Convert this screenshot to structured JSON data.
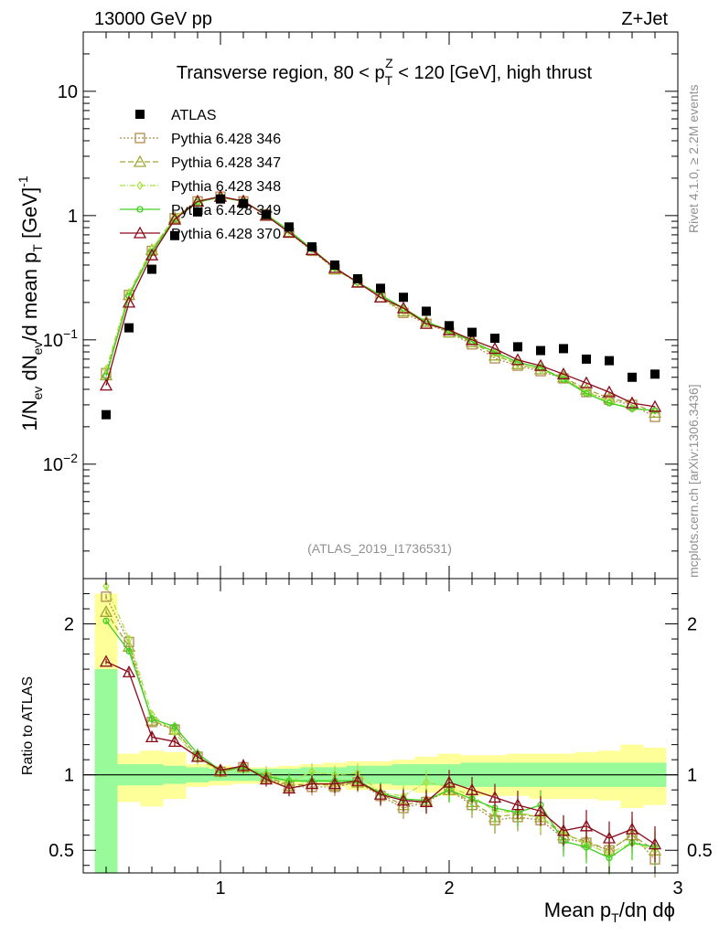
{
  "header": {
    "energy_label": "13000 GeV pp",
    "process_label": "Z+Jet"
  },
  "side_labels": {
    "rivet": "Rivet 4.1.0, ≥ 2.2M events",
    "mcplots": "mcplots.cern.ch [arXiv:1306.3436]"
  },
  "chart_data": [
    {
      "type": "scatter",
      "panel": "main",
      "title": "Transverse region, 80 < p_T^Z < 120 [GeV], high thrust",
      "analysis_tag": "(ATLAS_2019_I1736531)",
      "ylabel": "1/N_ev dN_ev/d mean p_T [GeV]^-1",
      "yscale": "log",
      "ylim": [
        0.0012,
        30
      ],
      "xlim": [
        0.4,
        3.0
      ],
      "y_ticks": [
        0.01,
        0.1,
        1,
        10
      ],
      "y_tick_labels": [
        "10^-2",
        "10^-1",
        "1",
        "10"
      ],
      "legend_position": "top-left",
      "legend": [
        "ATLAS",
        "Pythia 6.428 346",
        "Pythia 6.428 347",
        "Pythia 6.428 348",
        "Pythia 6.428 349",
        "Pythia 6.428 370"
      ],
      "x": [
        0.5,
        0.6,
        0.7,
        0.8,
        0.9,
        1.0,
        1.1,
        1.2,
        1.3,
        1.4,
        1.5,
        1.6,
        1.7,
        1.8,
        1.9,
        2.0,
        2.1,
        2.2,
        2.3,
        2.4,
        2.5,
        2.6,
        2.7,
        2.8,
        2.9
      ],
      "series": [
        {
          "name": "ATLAS",
          "color": "#000000",
          "marker": "square-filled",
          "values": [
            0.025,
            0.125,
            0.37,
            0.69,
            1.07,
            1.36,
            1.25,
            1.02,
            0.81,
            0.56,
            0.4,
            0.31,
            0.26,
            0.22,
            0.17,
            0.13,
            0.115,
            0.103,
            0.088,
            0.082,
            0.085,
            0.07,
            0.068,
            0.05,
            0.053
          ]
        },
        {
          "name": "Pythia 6.428 346",
          "color": "#b08c4c",
          "marker": "square-open",
          "dash": "2,2",
          "values": [
            0.054,
            0.23,
            0.52,
            0.95,
            1.3,
            1.42,
            1.3,
            1.02,
            0.73,
            0.52,
            0.37,
            0.29,
            0.22,
            0.165,
            0.135,
            0.115,
            0.092,
            0.071,
            0.062,
            0.056,
            0.049,
            0.038,
            0.033,
            0.03,
            0.024
          ]
        },
        {
          "name": "Pythia 6.428 347",
          "color": "#a0a830",
          "marker": "triangle-open",
          "dash": "6,3",
          "values": [
            0.052,
            0.23,
            0.53,
            0.96,
            1.31,
            1.42,
            1.3,
            1.01,
            0.74,
            0.53,
            0.37,
            0.29,
            0.22,
            0.17,
            0.14,
            0.115,
            0.096,
            0.075,
            0.064,
            0.058,
            0.05,
            0.04,
            0.034,
            0.031,
            0.026
          ]
        },
        {
          "name": "Pythia 6.428 348",
          "color": "#a8e040",
          "marker": "diamond-open",
          "dash": "6,2,1,2",
          "values": [
            0.058,
            0.24,
            0.54,
            0.97,
            1.31,
            1.41,
            1.3,
            1.02,
            0.75,
            0.54,
            0.38,
            0.29,
            0.23,
            0.17,
            0.14,
            0.12,
            0.097,
            0.078,
            0.064,
            0.058,
            0.049,
            0.038,
            0.032,
            0.028,
            0.027
          ]
        },
        {
          "name": "Pythia 6.428 349",
          "color": "#40d020",
          "marker": "circle-open",
          "dash": "",
          "values": [
            0.051,
            0.225,
            0.51,
            0.94,
            1.28,
            1.41,
            1.3,
            1.02,
            0.76,
            0.54,
            0.38,
            0.29,
            0.23,
            0.18,
            0.14,
            0.118,
            0.097,
            0.08,
            0.066,
            0.06,
            0.048,
            0.037,
            0.031,
            0.028,
            0.027
          ]
        },
        {
          "name": "Pythia 6.428 370",
          "color": "#8b0a1a",
          "marker": "triangle-open",
          "dash": "",
          "values": [
            0.043,
            0.2,
            0.48,
            0.93,
            1.3,
            1.42,
            1.31,
            1.0,
            0.73,
            0.53,
            0.38,
            0.29,
            0.22,
            0.18,
            0.135,
            0.12,
            0.1,
            0.085,
            0.069,
            0.062,
            0.053,
            0.045,
            0.038,
            0.031,
            0.029
          ]
        }
      ]
    },
    {
      "type": "line",
      "panel": "ratio",
      "ylabel": "Ratio to ATLAS",
      "xlabel": "Mean p_T/dη dϕ",
      "ylim": [
        0.35,
        2.3
      ],
      "xlim": [
        0.4,
        3.0
      ],
      "x_ticks": [
        1,
        2,
        3
      ],
      "x_tick_labels": [
        "1",
        "2",
        "3"
      ],
      "y_ticks": [
        0.5,
        1,
        2
      ],
      "y_tick_labels": [
        "0.5",
        "1",
        "2"
      ],
      "reference_line": 1,
      "bin_edges": [
        0.45,
        0.55,
        0.65,
        0.75,
        0.85,
        0.95,
        1.05,
        1.15,
        1.25,
        1.35,
        1.45,
        1.55,
        1.65,
        1.75,
        1.85,
        1.95,
        2.05,
        2.15,
        2.25,
        2.35,
        2.45,
        2.55,
        2.65,
        2.75,
        2.85,
        2.95
      ],
      "band_stat": {
        "color": "#98fa98",
        "lo": [
          0.35,
          0.93,
          0.93,
          0.94,
          0.95,
          0.96,
          0.96,
          0.96,
          0.96,
          0.95,
          0.95,
          0.94,
          0.94,
          0.93,
          0.93,
          0.93,
          0.92,
          0.92,
          0.92,
          0.92,
          0.92,
          0.92,
          0.92,
          0.92,
          0.92
        ],
        "hi": [
          1.7,
          1.07,
          1.07,
          1.06,
          1.05,
          1.04,
          1.04,
          1.04,
          1.04,
          1.05,
          1.05,
          1.06,
          1.06,
          1.07,
          1.07,
          1.07,
          1.08,
          1.08,
          1.08,
          1.08,
          1.08,
          1.08,
          1.08,
          1.08,
          1.08
        ]
      },
      "band_total": {
        "color": "#ffff99",
        "lo": [
          0.35,
          0.82,
          0.79,
          0.84,
          0.92,
          0.93,
          0.94,
          0.94,
          0.93,
          0.93,
          0.92,
          0.9,
          0.9,
          0.9,
          0.88,
          0.86,
          0.86,
          0.86,
          0.86,
          0.84,
          0.84,
          0.84,
          0.83,
          0.78,
          0.8
        ],
        "hi": [
          2.2,
          1.14,
          1.16,
          1.15,
          1.07,
          1.06,
          1.05,
          1.05,
          1.06,
          1.07,
          1.08,
          1.09,
          1.09,
          1.1,
          1.12,
          1.14,
          1.13,
          1.13,
          1.14,
          1.14,
          1.14,
          1.15,
          1.16,
          1.2,
          1.18
        ]
      },
      "series": [
        {
          "name": "Pythia 6.428 346",
          "values": [
            2.18,
            1.88,
            1.35,
            1.3,
            1.12,
            1.02,
            1.05,
            0.98,
            0.92,
            0.92,
            0.92,
            0.95,
            0.86,
            0.78,
            0.82,
            0.9,
            0.8,
            0.7,
            0.72,
            0.7,
            0.58,
            0.55,
            0.5,
            0.6,
            0.44
          ]
        },
        {
          "name": "Pythia 6.428 347",
          "values": [
            2.08,
            1.85,
            1.36,
            1.3,
            1.12,
            1.02,
            1.05,
            0.99,
            0.93,
            0.94,
            0.93,
            0.95,
            0.87,
            0.8,
            0.83,
            0.9,
            0.82,
            0.72,
            0.74,
            0.72,
            0.6,
            0.56,
            0.5,
            0.6,
            0.5
          ]
        },
        {
          "name": "Pythia 6.428 348",
          "values": [
            2.25,
            1.9,
            1.4,
            1.28,
            1.1,
            1.03,
            1.05,
            1.01,
            0.95,
            1.02,
            1.0,
            1.01,
            0.88,
            0.86,
            0.95,
            0.92,
            0.86,
            0.76,
            0.75,
            0.72,
            0.62,
            0.54,
            0.48,
            0.55,
            0.5
          ]
        },
        {
          "name": "Pythia 6.428 349",
          "values": [
            2.02,
            1.82,
            1.37,
            1.32,
            1.14,
            1.03,
            1.05,
            0.99,
            0.96,
            0.96,
            0.96,
            0.96,
            0.88,
            0.84,
            0.83,
            0.9,
            0.84,
            0.78,
            0.75,
            0.8,
            0.56,
            0.52,
            0.45,
            0.55,
            0.52
          ]
        },
        {
          "name": "Pythia 6.428 370",
          "values": [
            1.75,
            1.68,
            1.25,
            1.22,
            1.12,
            1.03,
            1.06,
            0.97,
            0.91,
            0.94,
            0.94,
            0.96,
            0.87,
            0.83,
            0.82,
            0.95,
            0.9,
            0.85,
            0.8,
            0.76,
            0.63,
            0.66,
            0.58,
            0.64,
            0.54
          ]
        }
      ]
    }
  ]
}
